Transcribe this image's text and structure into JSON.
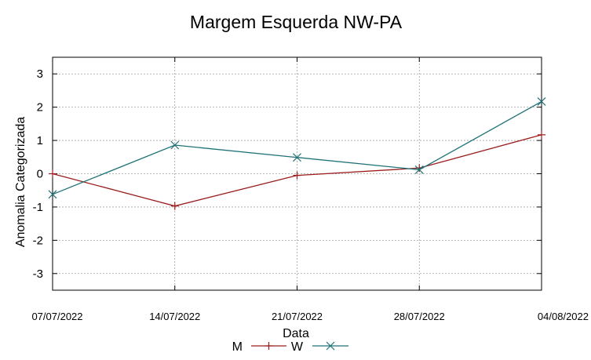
{
  "chart_data": {
    "type": "line",
    "title": "Margem Esquerda NW-PA",
    "xlabel": "Data",
    "ylabel": "Anomalia Categorizada",
    "categories": [
      "07/07/2022",
      "14/07/2022",
      "21/07/2022",
      "28/07/2022",
      "04/08/2022"
    ],
    "ylim": [
      -3.5,
      3.5
    ],
    "yticks": [
      "3",
      "2",
      "1",
      "0",
      "-1",
      "-2",
      "-3"
    ],
    "ytick_values": [
      3,
      2,
      1,
      0,
      -1,
      -2,
      -3
    ],
    "grid": true,
    "legend_position": "bottom-center",
    "series": [
      {
        "name": "M",
        "color": "#9b1c1c",
        "marker": "plus",
        "values": [
          0.0,
          -0.97,
          -0.05,
          0.17,
          1.17
        ]
      },
      {
        "name": "W",
        "color": "#1f7377",
        "marker": "x",
        "values": [
          -0.62,
          0.86,
          0.49,
          0.12,
          2.17
        ]
      }
    ]
  }
}
